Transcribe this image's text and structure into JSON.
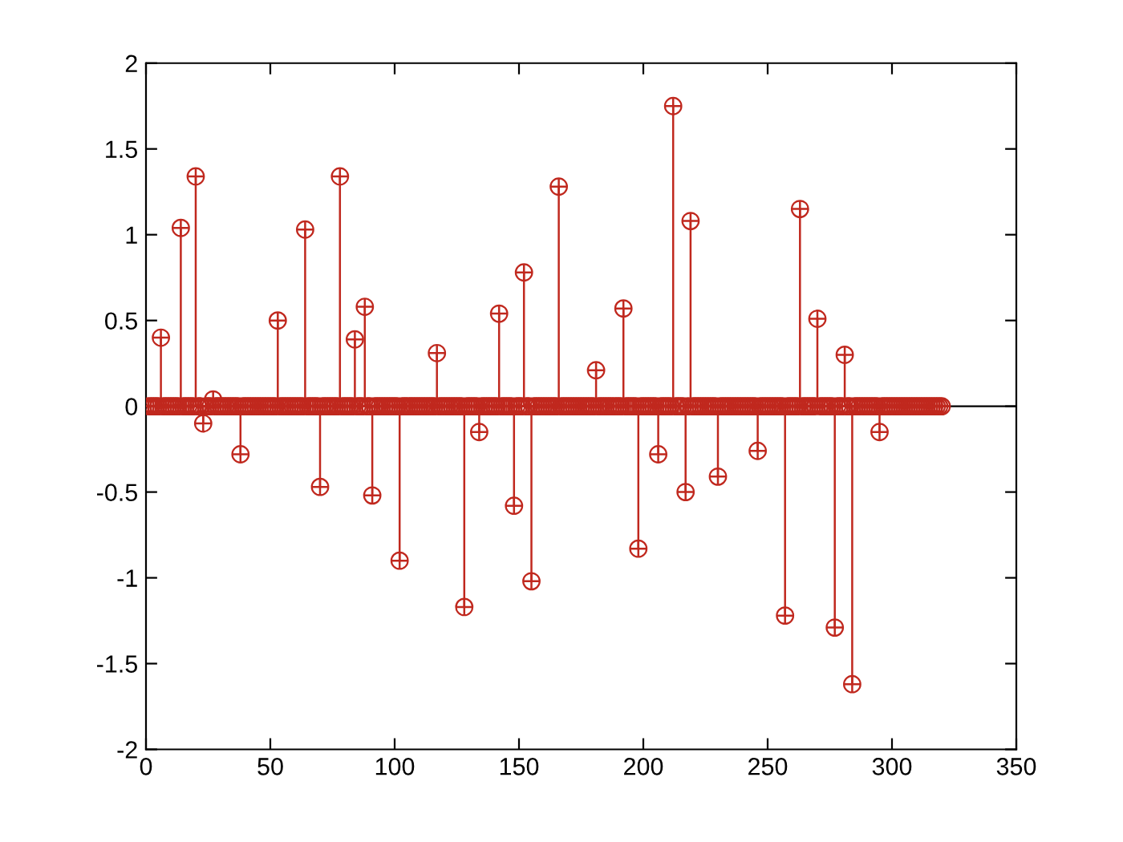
{
  "chart_data": {
    "type": "lollipop",
    "marker": "circle",
    "grid": false,
    "xlim": [
      0,
      350
    ],
    "xticks": [
      0,
      50,
      100,
      150,
      200,
      250,
      300,
      350
    ],
    "ylim": [
      -2,
      2
    ],
    "yticks": [
      -2,
      -1.5,
      -1,
      -0.5,
      0,
      0.5,
      1,
      1.5,
      2
    ],
    "ref_lines": [
      {
        "axis": "y",
        "value": 0,
        "color": "#000000"
      }
    ],
    "series": [
      {
        "color": "#c0281e",
        "x": [
          1,
          2,
          3,
          4,
          5,
          6,
          7,
          8,
          9,
          10,
          11,
          12,
          13,
          14,
          15,
          16,
          17,
          18,
          19,
          20,
          21,
          22,
          23,
          24,
          25,
          26,
          27,
          28,
          29,
          30,
          31,
          32,
          33,
          34,
          35,
          36,
          37,
          38,
          39,
          40,
          41,
          42,
          43,
          44,
          45,
          46,
          47,
          48,
          49,
          50,
          51,
          52,
          53,
          54,
          55,
          56,
          57,
          58,
          59,
          60,
          61,
          62,
          63,
          64,
          65,
          66,
          67,
          68,
          69,
          70,
          71,
          72,
          73,
          74,
          75,
          76,
          77,
          78,
          79,
          80,
          81,
          82,
          83,
          84,
          85,
          86,
          87,
          88,
          89,
          90,
          91,
          92,
          93,
          94,
          95,
          96,
          97,
          98,
          99,
          100,
          101,
          102,
          103,
          104,
          105,
          106,
          107,
          108,
          109,
          110,
          111,
          112,
          113,
          114,
          115,
          116,
          117,
          118,
          119,
          120,
          121,
          122,
          123,
          124,
          125,
          126,
          127,
          128,
          129,
          130,
          131,
          132,
          133,
          134,
          135,
          136,
          137,
          138,
          139,
          140,
          141,
          142,
          143,
          144,
          145,
          146,
          147,
          148,
          149,
          150,
          151,
          152,
          153,
          154,
          155,
          156,
          157,
          158,
          159,
          160,
          161,
          162,
          163,
          164,
          165,
          166,
          167,
          168,
          169,
          170,
          171,
          172,
          173,
          174,
          175,
          176,
          177,
          178,
          179,
          180,
          181,
          182,
          183,
          184,
          185,
          186,
          187,
          188,
          189,
          190,
          191,
          192,
          193,
          194,
          195,
          196,
          197,
          198,
          199,
          200,
          201,
          202,
          203,
          204,
          205,
          206,
          207,
          208,
          209,
          210,
          211,
          212,
          213,
          214,
          215,
          216,
          217,
          218,
          219,
          220,
          221,
          222,
          223,
          224,
          225,
          226,
          227,
          228,
          229,
          230,
          231,
          232,
          233,
          234,
          235,
          236,
          237,
          238,
          239,
          240,
          241,
          242,
          243,
          244,
          245,
          246,
          247,
          248,
          249,
          250,
          251,
          252,
          253,
          254,
          255,
          256,
          257,
          258,
          259,
          260,
          261,
          262,
          263,
          264,
          265,
          266,
          267,
          268,
          269,
          270,
          271,
          272,
          273,
          274,
          275,
          276,
          277,
          278,
          279,
          280,
          281,
          282,
          283,
          284,
          285,
          286,
          287,
          288,
          289,
          290,
          291,
          292,
          293,
          294,
          295,
          296,
          297,
          298,
          299,
          300,
          301,
          302,
          303,
          304,
          305,
          306,
          307,
          308,
          309,
          310,
          311,
          312,
          313,
          314,
          315,
          316,
          317,
          318,
          319,
          320
        ],
        "values": [
          0,
          0,
          0,
          0,
          0,
          0.4,
          0,
          0,
          0,
          0,
          0,
          0,
          0,
          1.04,
          0,
          0,
          0,
          0,
          0,
          1.34,
          0,
          0,
          -0.1,
          0,
          0,
          0,
          0.04,
          0,
          0,
          0,
          0,
          0,
          0,
          0,
          0,
          0,
          0,
          -0.28,
          0,
          0,
          0,
          0,
          0,
          0,
          0,
          0,
          0,
          0,
          0,
          0,
          0,
          0,
          0.5,
          0,
          0,
          0,
          0,
          0,
          0,
          0,
          0,
          0,
          0,
          1.03,
          0,
          0,
          0,
          0,
          0,
          -0.47,
          0,
          0,
          0,
          0,
          0,
          0,
          0,
          1.34,
          0,
          0,
          0,
          0,
          0,
          0.39,
          0,
          0,
          0,
          0.58,
          0,
          0,
          -0.52,
          0,
          0,
          0,
          0,
          0,
          0,
          0,
          0,
          0,
          0,
          -0.9,
          0,
          0,
          0,
          0,
          0,
          0,
          0,
          0,
          0,
          0,
          0,
          0,
          0,
          0,
          0.31,
          0,
          0,
          0,
          0,
          0,
          0,
          0,
          0,
          0,
          0,
          -1.17,
          0,
          0,
          0,
          0,
          0,
          -0.15,
          0,
          0,
          0,
          0,
          0,
          0,
          0,
          0.54,
          0,
          0,
          0,
          0,
          0,
          -0.58,
          0,
          0,
          0,
          0.78,
          0,
          0,
          -1.02,
          0,
          0,
          0,
          0,
          0,
          0,
          0,
          0,
          0,
          0,
          1.28,
          0,
          0,
          0,
          0,
          0,
          0,
          0,
          0,
          0,
          0,
          0,
          0,
          0,
          0,
          0.21,
          0,
          0,
          0,
          0,
          0,
          0,
          0,
          0,
          0,
          0,
          0.57,
          0,
          0,
          0,
          0,
          0,
          -0.83,
          0,
          0,
          0,
          0,
          0,
          0,
          0,
          -0.28,
          0,
          0,
          0,
          0,
          0,
          1.75,
          0,
          0,
          0,
          0,
          -0.5,
          0,
          1.08,
          0,
          0,
          0,
          0,
          0,
          0,
          0,
          0,
          0,
          0,
          -0.41,
          0,
          0,
          0,
          0,
          0,
          0,
          0,
          0,
          0,
          0,
          0,
          0,
          0,
          0,
          0,
          -0.26,
          0,
          0,
          0,
          0,
          0,
          0,
          0,
          0,
          0,
          0,
          -1.22,
          0,
          0,
          0,
          0,
          0,
          1.15,
          0,
          0,
          0,
          0,
          0,
          0,
          0.51,
          0,
          0,
          0,
          0,
          0,
          0,
          -1.29,
          0,
          0,
          0,
          0.3,
          0,
          0,
          -1.62,
          0,
          0,
          0,
          0,
          0,
          0,
          0,
          0,
          0,
          0,
          -0.15,
          0,
          0,
          0,
          0,
          0,
          0,
          0,
          0,
          0,
          0,
          0,
          0,
          0,
          0,
          0,
          0,
          0,
          0,
          0,
          0,
          0,
          0,
          0,
          0,
          0
        ]
      }
    ]
  }
}
